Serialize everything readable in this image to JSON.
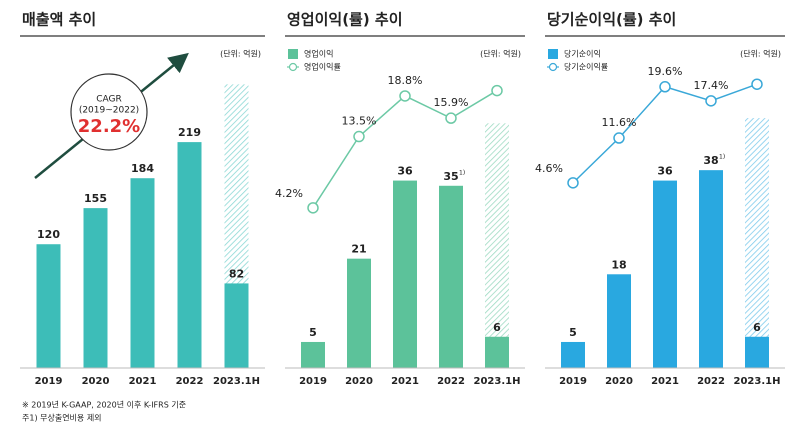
{
  "chart_data": [
    {
      "type": "bar",
      "title": "매출액 추이",
      "unit_label": "(단위: 억원)",
      "categories": [
        "2019",
        "2020",
        "2021",
        "2022",
        "2023.1H"
      ],
      "values": [
        120,
        155,
        184,
        219,
        82
      ],
      "hatched_values": [
        null,
        null,
        null,
        null,
        275
      ],
      "color": "#3dbdb8",
      "ylim": [
        0,
        318
      ],
      "annotation": {
        "label": "CAGR",
        "period": "(2019~2022)",
        "value": "22.2%"
      }
    },
    {
      "type": "bar",
      "title": "영업이익(률) 추이",
      "unit_label": "(단위: 억원)",
      "categories": [
        "2019",
        "2020",
        "2021",
        "2022",
        "2023.1H"
      ],
      "series": [
        {
          "name": "영업이익",
          "color": "#5cc29a",
          "values": [
            5,
            21,
            36,
            35,
            6
          ],
          "hatched_values": [
            null,
            null,
            null,
            null,
            47
          ],
          "footnote_marks": [
            null,
            null,
            null,
            "1)",
            null
          ]
        },
        {
          "name": "영업이익률",
          "type": "line",
          "axis": "y2",
          "color": "#6cc9a5",
          "values": [
            4.2,
            13.5,
            18.8,
            15.9,
            19.5
          ],
          "value_labels": [
            "4.2%",
            "13.5%",
            "18.8%",
            "15.9%",
            null
          ]
        }
      ],
      "ylim": [
        0,
        63
      ],
      "y2lim": [
        -16.7,
        26.1
      ]
    },
    {
      "type": "bar",
      "title": "당기순이익(률) 추이",
      "unit_label": "(단위: 억원)",
      "categories": [
        "2019",
        "2020",
        "2021",
        "2022",
        "2023.1H"
      ],
      "series": [
        {
          "name": "당기순이익",
          "color": "#29a8e0",
          "values": [
            5,
            18,
            36,
            38,
            6
          ],
          "hatched_values": [
            null,
            null,
            null,
            null,
            48
          ],
          "footnote_marks": [
            null,
            null,
            null,
            "1)",
            null
          ]
        },
        {
          "name": "당기순이익률",
          "type": "line",
          "axis": "y2",
          "color": "#3aa8d8",
          "values": [
            4.6,
            11.6,
            19.6,
            17.4,
            20.0
          ],
          "value_labels": [
            "4.6%",
            "11.6%",
            "19.6%",
            "17.4%",
            null
          ]
        }
      ],
      "ylim": [
        0,
        63
      ],
      "y2lim": [
        -24.3,
        26.9
      ]
    }
  ],
  "notes": [
    "※ 2019년 K-GAAP, 2020년 이후 K-IFRS 기준",
    "주1) 무상출연비용 제외"
  ]
}
